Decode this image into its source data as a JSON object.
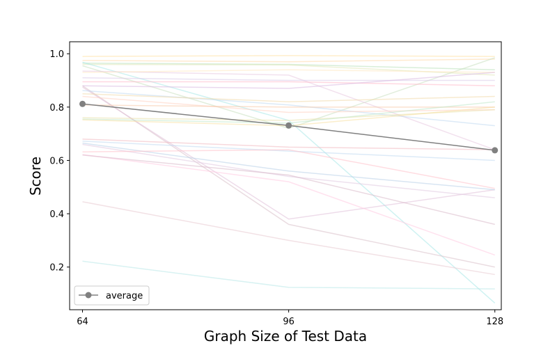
{
  "chart_data": {
    "type": "line",
    "xlabel": "Graph Size of Test Data",
    "ylabel": "Score",
    "x": [
      64,
      96,
      128
    ],
    "x_ticks": [
      "64",
      "96",
      "128"
    ],
    "y_ticks": [
      "0.2",
      "0.4",
      "0.6",
      "0.8",
      "1.0"
    ],
    "y_tick_values": [
      0.2,
      0.4,
      0.6,
      0.8,
      1.0
    ],
    "xlim": [
      62,
      129
    ],
    "ylim": [
      0.04,
      1.045
    ],
    "grid": false,
    "legend_position": "lower-left",
    "series": [
      {
        "name": "average",
        "values": [
          0.812,
          0.731,
          0.638
        ],
        "color": "#808080",
        "marker": "circle"
      }
    ],
    "background_series": [
      {
        "values": [
          0.99,
          0.993,
          0.99
        ],
        "color": "#ffe0a0"
      },
      {
        "values": [
          0.975,
          0.97,
          0.98
        ],
        "color": "#ffd8a8"
      },
      {
        "values": [
          0.965,
          0.96,
          0.94
        ],
        "color": "#b8e0b8"
      },
      {
        "values": [
          0.96,
          0.958,
          0.92
        ],
        "color": "#e0e8b8"
      },
      {
        "values": [
          0.968,
          0.75,
          0.065
        ],
        "color": "#a8e8e8"
      },
      {
        "values": [
          0.955,
          0.72,
          0.985
        ],
        "color": "#c8e0c0"
      },
      {
        "values": [
          0.935,
          0.92,
          0.64
        ],
        "color": "#e8c8e0"
      },
      {
        "values": [
          0.93,
          0.94,
          0.93
        ],
        "color": "#ffe8c0"
      },
      {
        "values": [
          0.91,
          0.9,
          0.9
        ],
        "color": "#d8c8e8"
      },
      {
        "values": [
          0.895,
          0.895,
          0.88
        ],
        "color": "#ffb8c8"
      },
      {
        "values": [
          0.88,
          0.87,
          0.93
        ],
        "color": "#d8b8e0"
      },
      {
        "values": [
          0.88,
          0.36,
          0.2
        ],
        "color": "#d8c0c8"
      },
      {
        "values": [
          0.875,
          0.38,
          0.49
        ],
        "color": "#e0c0d8"
      },
      {
        "values": [
          0.862,
          0.808,
          0.73
        ],
        "color": "#c0d8f0"
      },
      {
        "values": [
          0.85,
          0.82,
          0.84
        ],
        "color": "#f0d8a8"
      },
      {
        "values": [
          0.84,
          0.78,
          0.79
        ],
        "color": "#ffd0c0"
      },
      {
        "values": [
          0.808,
          0.8,
          0.8
        ],
        "color": "#f8c8a8"
      },
      {
        "values": [
          0.76,
          0.75,
          0.79
        ],
        "color": "#e8e0a8"
      },
      {
        "values": [
          0.755,
          0.74,
          0.82
        ],
        "color": "#c0e8c8"
      },
      {
        "values": [
          0.752,
          0.73,
          0.8
        ],
        "color": "#f8e0a0"
      },
      {
        "values": [
          0.68,
          0.65,
          0.64
        ],
        "color": "#f0b8c0"
      },
      {
        "values": [
          0.672,
          0.635,
          0.6
        ],
        "color": "#c0d8f0"
      },
      {
        "values": [
          0.665,
          0.56,
          0.49
        ],
        "color": "#b8d0e8"
      },
      {
        "values": [
          0.66,
          0.54,
          0.46
        ],
        "color": "#e0c8e0"
      },
      {
        "values": [
          0.632,
          0.64,
          0.495
        ],
        "color": "#ffc0c8"
      },
      {
        "values": [
          0.622,
          0.52,
          0.245
        ],
        "color": "#ffc8e0"
      },
      {
        "values": [
          0.62,
          0.545,
          0.36
        ],
        "color": "#d8b8c8"
      },
      {
        "values": [
          0.445,
          0.3,
          0.172
        ],
        "color": "#e8c8d0"
      },
      {
        "values": [
          0.222,
          0.124,
          0.118
        ],
        "color": "#b8e8e8"
      }
    ]
  }
}
